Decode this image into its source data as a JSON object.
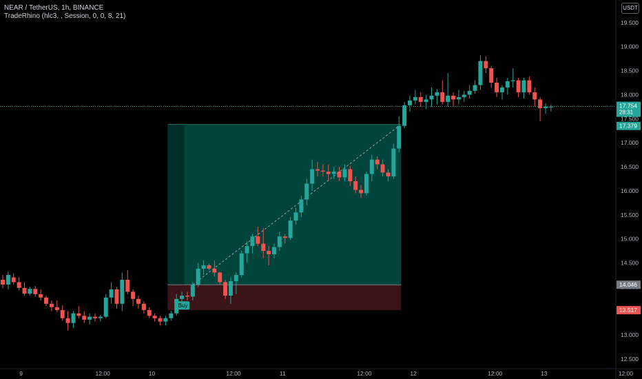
{
  "legend": {
    "symbol": "NEAR / TetherUS, 1h, BINANCE",
    "indicator": "TradeRhino (hlc3, , Session, 0, 0, 8, 21)"
  },
  "currency_button": "USDT",
  "colors": {
    "background": "#000000",
    "up": "#26a69a",
    "down": "#ef5350",
    "profit_zone": "#00483e",
    "loss_zone": "#3a1416",
    "text": "#d1d4dc",
    "axis_text": "#b2b5be"
  },
  "chart_data": {
    "type": "candlestick",
    "ylim": [
      12.3,
      19.97
    ],
    "y_ticks": [
      "19.500",
      "19.000",
      "18.500",
      "18.000",
      "17.500",
      "17.000",
      "16.500",
      "16.000",
      "15.500",
      "15.000",
      "14.500",
      "14.000",
      "13.500",
      "13.000",
      "12.500"
    ],
    "x_ticks": [
      "9",
      "12:00",
      "10",
      "12:00",
      "11",
      "12:00",
      "12",
      "12:00",
      "13",
      "12:00"
    ],
    "candles": [
      [
        14.15,
        14.25,
        13.97,
        14.05
      ],
      [
        14.05,
        14.32,
        13.95,
        14.25
      ],
      [
        14.2,
        14.28,
        14.05,
        14.1
      ],
      [
        14.1,
        14.2,
        13.93,
        13.98
      ],
      [
        13.98,
        14.1,
        13.82,
        13.86
      ],
      [
        13.86,
        14.0,
        13.82,
        13.96
      ],
      [
        13.96,
        14.02,
        13.8,
        13.85
      ],
      [
        13.85,
        13.95,
        13.72,
        13.78
      ],
      [
        13.78,
        13.82,
        13.6,
        13.65
      ],
      [
        13.65,
        13.72,
        13.5,
        13.58
      ],
      [
        13.58,
        13.72,
        13.48,
        13.52
      ],
      [
        13.52,
        13.62,
        13.3,
        13.35
      ],
      [
        13.35,
        13.5,
        13.1,
        13.25
      ],
      [
        13.25,
        13.5,
        13.15,
        13.45
      ],
      [
        13.45,
        13.6,
        13.35,
        13.4
      ],
      [
        13.4,
        13.5,
        13.25,
        13.32
      ],
      [
        13.32,
        13.45,
        13.22,
        13.38
      ],
      [
        13.38,
        13.45,
        13.28,
        13.35
      ],
      [
        13.35,
        13.42,
        13.28,
        13.38
      ],
      [
        13.38,
        13.85,
        13.35,
        13.78
      ],
      [
        13.78,
        14.1,
        13.65,
        13.95
      ],
      [
        13.95,
        14.0,
        13.55,
        13.65
      ],
      [
        13.65,
        14.3,
        13.5,
        14.15
      ],
      [
        14.15,
        14.35,
        13.85,
        13.9
      ],
      [
        13.9,
        13.95,
        13.6,
        13.75
      ],
      [
        13.75,
        13.82,
        13.55,
        13.65
      ],
      [
        13.65,
        13.7,
        13.45,
        13.52
      ],
      [
        13.52,
        13.58,
        13.35,
        13.4
      ],
      [
        13.4,
        13.45,
        13.28,
        13.35
      ],
      [
        13.35,
        13.4,
        13.2,
        13.28
      ],
      [
        13.28,
        13.4,
        13.2,
        13.35
      ],
      [
        13.35,
        13.5,
        13.3,
        13.45
      ],
      [
        13.45,
        13.85,
        13.4,
        13.75
      ],
      [
        13.75,
        13.9,
        13.7,
        13.82
      ],
      [
        13.82,
        13.9,
        13.72,
        13.8
      ],
      [
        13.8,
        14.1,
        13.72,
        14.05
      ],
      [
        14.05,
        14.5,
        14.0,
        14.38
      ],
      [
        14.38,
        14.55,
        14.25,
        14.45
      ],
      [
        14.45,
        14.48,
        14.35,
        14.38
      ],
      [
        14.38,
        14.55,
        14.22,
        14.3
      ],
      [
        14.3,
        14.32,
        14.05,
        14.1
      ],
      [
        14.1,
        14.15,
        13.75,
        13.82
      ],
      [
        13.82,
        14.2,
        13.65,
        14.12
      ],
      [
        14.12,
        14.3,
        13.85,
        14.25
      ],
      [
        14.25,
        14.75,
        14.2,
        14.7
      ],
      [
        14.7,
        14.95,
        14.5,
        14.85
      ],
      [
        14.85,
        15.1,
        14.7,
        15.05
      ],
      [
        15.05,
        15.25,
        14.85,
        14.9
      ],
      [
        14.9,
        15.22,
        14.6,
        14.75
      ],
      [
        14.75,
        14.85,
        14.45,
        14.68
      ],
      [
        14.68,
        14.9,
        14.6,
        14.83
      ],
      [
        14.83,
        15.15,
        14.75,
        15.05
      ],
      [
        15.05,
        15.1,
        14.9,
        15.02
      ],
      [
        15.02,
        15.45,
        14.98,
        15.38
      ],
      [
        15.38,
        15.65,
        15.3,
        15.55
      ],
      [
        15.55,
        15.9,
        15.45,
        15.82
      ],
      [
        15.82,
        16.25,
        15.7,
        16.15
      ],
      [
        16.15,
        16.65,
        16.0,
        16.45
      ],
      [
        16.45,
        16.6,
        16.3,
        16.42
      ],
      [
        16.42,
        16.55,
        16.3,
        16.4
      ],
      [
        16.4,
        16.55,
        16.2,
        16.35
      ],
      [
        16.35,
        16.5,
        16.25,
        16.4
      ],
      [
        16.4,
        16.5,
        16.2,
        16.28
      ],
      [
        16.28,
        16.55,
        16.2,
        16.45
      ],
      [
        16.45,
        16.52,
        16.1,
        16.2
      ],
      [
        16.2,
        16.3,
        15.95,
        16.02
      ],
      [
        16.02,
        16.12,
        15.85,
        15.95
      ],
      [
        15.95,
        16.4,
        15.9,
        16.35
      ],
      [
        16.35,
        16.75,
        16.2,
        16.65
      ],
      [
        16.65,
        16.72,
        16.45,
        16.55
      ],
      [
        16.55,
        16.65,
        16.3,
        16.38
      ],
      [
        16.38,
        16.45,
        16.2,
        16.3
      ],
      [
        16.3,
        16.98,
        16.25,
        16.88
      ],
      [
        16.88,
        17.55,
        16.8,
        17.35
      ],
      [
        17.35,
        17.85,
        17.3,
        17.78
      ],
      [
        17.78,
        17.98,
        17.65,
        17.88
      ],
      [
        17.88,
        18.1,
        17.8,
        17.95
      ],
      [
        17.95,
        18.05,
        17.75,
        17.85
      ],
      [
        17.85,
        18.0,
        17.7,
        17.9
      ],
      [
        17.9,
        18.15,
        17.75,
        17.98
      ],
      [
        17.98,
        18.12,
        17.8,
        18.05
      ],
      [
        18.05,
        18.3,
        17.8,
        17.85
      ],
      [
        17.85,
        18.45,
        17.75,
        17.98
      ],
      [
        17.98,
        18.05,
        17.75,
        17.9
      ],
      [
        17.9,
        18.1,
        17.8,
        17.95
      ],
      [
        17.95,
        18.08,
        17.85,
        18.0
      ],
      [
        18.0,
        18.2,
        17.92,
        18.08
      ],
      [
        18.08,
        18.3,
        18.02,
        18.2
      ],
      [
        18.2,
        18.82,
        18.1,
        18.7
      ],
      [
        18.7,
        18.8,
        18.45,
        18.55
      ],
      [
        18.55,
        18.6,
        18.15,
        18.25
      ],
      [
        18.25,
        18.35,
        17.95,
        18.05
      ],
      [
        18.05,
        18.2,
        17.9,
        18.15
      ],
      [
        18.15,
        18.35,
        18.0,
        18.28
      ],
      [
        18.28,
        18.55,
        18.15,
        18.3
      ],
      [
        18.3,
        18.35,
        17.95,
        18.05
      ],
      [
        18.05,
        18.35,
        17.92,
        18.3
      ],
      [
        18.3,
        18.38,
        18.0,
        18.05
      ],
      [
        18.05,
        18.15,
        17.75,
        17.9
      ],
      [
        17.9,
        17.95,
        17.45,
        17.72
      ],
      [
        17.72,
        17.82,
        17.6,
        17.75
      ],
      [
        17.75,
        17.8,
        17.65,
        17.75
      ]
    ],
    "position": {
      "entry_label": "Buy",
      "entry": 14.046,
      "target": 17.379,
      "stop": 13.517,
      "start_index": 30,
      "end_index": 73
    },
    "price_labels": {
      "current": "17.754",
      "countdown": "28:31",
      "target": "17.379",
      "entry": "14.046",
      "stop": "13.517"
    }
  }
}
